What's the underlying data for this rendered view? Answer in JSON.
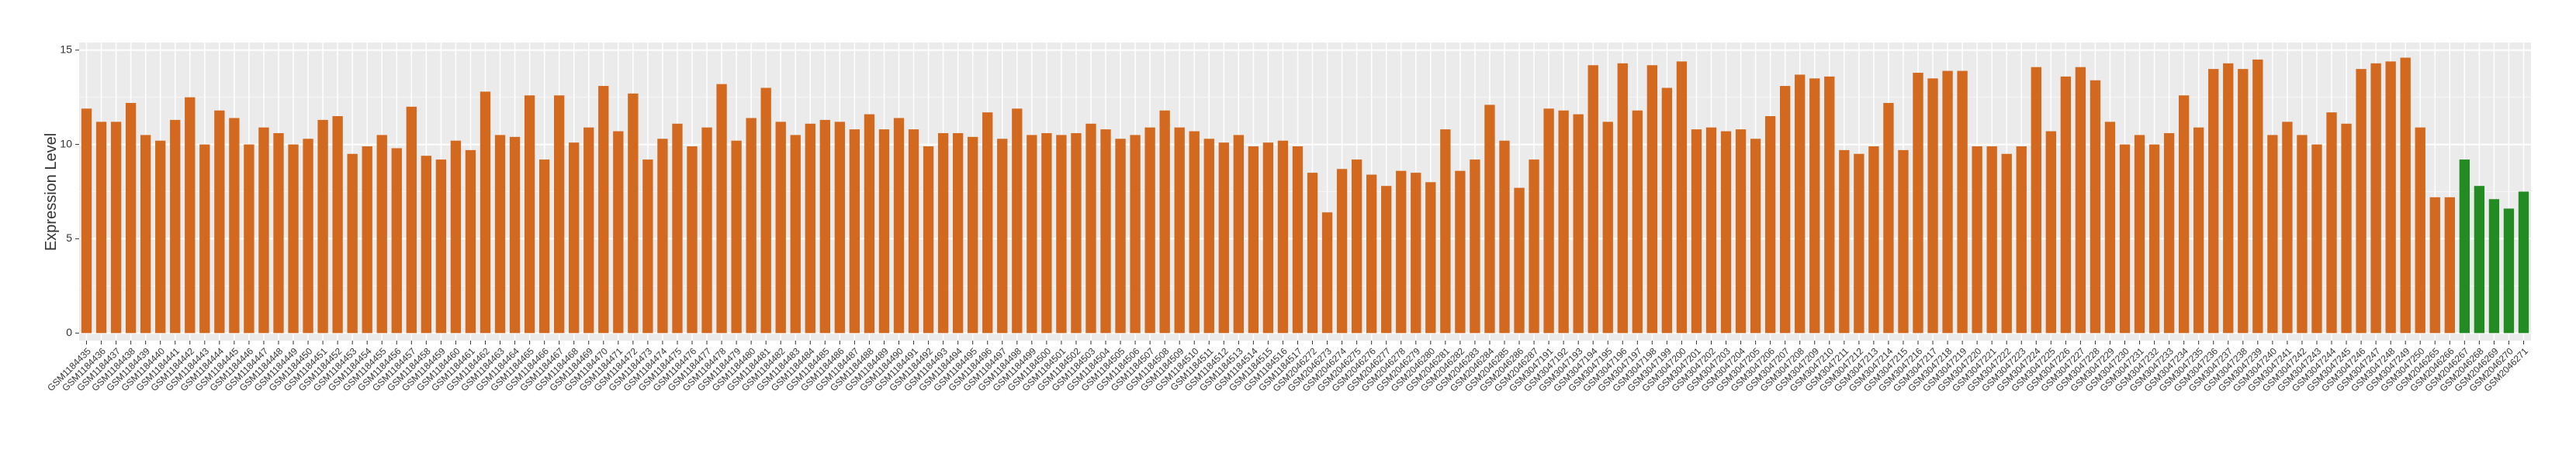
{
  "chart_data": {
    "type": "bar",
    "y_label": "Expression Level",
    "categories": [
      "GSM1184435",
      "GSM1184436",
      "GSM1184437",
      "GSM1184438",
      "GSM1184439",
      "GSM1184440",
      "GSM1184441",
      "GSM1184442",
      "GSM1184443",
      "GSM1184444",
      "GSM1184445",
      "GSM1184446",
      "GSM1184447",
      "GSM1184448",
      "GSM1184449",
      "GSM1184450",
      "GSM1184451",
      "GSM1184452",
      "GSM1184453",
      "GSM1184454",
      "GSM1184455",
      "GSM1184456",
      "GSM1184457",
      "GSM1184458",
      "GSM1184459",
      "GSM1184460",
      "GSM1184461",
      "GSM1184462",
      "GSM1184463",
      "GSM1184464",
      "GSM1184465",
      "GSM1184466",
      "GSM1184467",
      "GSM1184468",
      "GSM1184469",
      "GSM1184470",
      "GSM1184471",
      "GSM1184472",
      "GSM1184473",
      "GSM1184474",
      "GSM1184475",
      "GSM1184476",
      "GSM1184477",
      "GSM1184478",
      "GSM1184479",
      "GSM1184480",
      "GSM1184481",
      "GSM1184482",
      "GSM1184483",
      "GSM1184484",
      "GSM1184485",
      "GSM1184486",
      "GSM1184487",
      "GSM1184488",
      "GSM1184489",
      "GSM1184490",
      "GSM1184491",
      "GSM1184492",
      "GSM1184493",
      "GSM1184494",
      "GSM1184495",
      "GSM1184496",
      "GSM1184497",
      "GSM1184498",
      "GSM1184499",
      "GSM1184500",
      "GSM1184501",
      "GSM1184502",
      "GSM1184503",
      "GSM1184504",
      "GSM1184505",
      "GSM1184506",
      "GSM1184507",
      "GSM1184508",
      "GSM1184509",
      "GSM1184510",
      "GSM1184511",
      "GSM1184512",
      "GSM1184513",
      "GSM1184514",
      "GSM1184515",
      "GSM1184516",
      "GSM1184517",
      "GSM2046272",
      "GSM2046273",
      "GSM2046274",
      "GSM2046275",
      "GSM2046276",
      "GSM2046277",
      "GSM2046278",
      "GSM2046279",
      "GSM2046280",
      "GSM2046281",
      "GSM2046282",
      "GSM2046283",
      "GSM2046284",
      "GSM2046285",
      "GSM2046286",
      "GSM2046287",
      "GSM3047191",
      "GSM3047192",
      "GSM3047193",
      "GSM3047194",
      "GSM3047195",
      "GSM3047196",
      "GSM3047197",
      "GSM3047198",
      "GSM3047199",
      "GSM3047200",
      "GSM3047201",
      "GSM3047202",
      "GSM3047203",
      "GSM3047204",
      "GSM3047205",
      "GSM3047206",
      "GSM3047207",
      "GSM3047208",
      "GSM3047209",
      "GSM3047210",
      "GSM3047211",
      "GSM3047212",
      "GSM3047213",
      "GSM3047214",
      "GSM3047215",
      "GSM3047216",
      "GSM3047217",
      "GSM3047218",
      "GSM3047219",
      "GSM3047220",
      "GSM3047221",
      "GSM3047222",
      "GSM3047223",
      "GSM3047224",
      "GSM3047225",
      "GSM3047226",
      "GSM3047227",
      "GSM3047228",
      "GSM3047229",
      "GSM3047230",
      "GSM3047231",
      "GSM3047232",
      "GSM3047233",
      "GSM3047234",
      "GSM3047235",
      "GSM3047236",
      "GSM3047237",
      "GSM3047238",
      "GSM3047239",
      "GSM3047240",
      "GSM3047241",
      "GSM3047242",
      "GSM3047243",
      "GSM3047244",
      "GSM3047245",
      "GSM3047246",
      "GSM3047247",
      "GSM3047248",
      "GSM3047249",
      "GSM3047250",
      "GSM2046265",
      "GSM2046266",
      "GSM2046267",
      "GSM2046268",
      "GSM2046269",
      "GSM2046270",
      "GSM2046271"
    ],
    "values": [
      11.9,
      11.2,
      11.2,
      12.2,
      10.5,
      10.2,
      11.3,
      12.5,
      10.0,
      11.8,
      11.4,
      10.0,
      10.9,
      10.6,
      10.0,
      10.3,
      11.3,
      11.5,
      9.5,
      9.9,
      10.5,
      9.8,
      12.0,
      9.4,
      9.2,
      10.2,
      9.7,
      12.8,
      10.5,
      10.4,
      12.6,
      9.2,
      12.6,
      10.1,
      10.9,
      13.1,
      10.7,
      12.7,
      9.2,
      10.3,
      11.1,
      9.9,
      10.9,
      13.2,
      10.2,
      11.4,
      13.0,
      11.2,
      10.5,
      11.1,
      11.3,
      11.2,
      10.8,
      11.6,
      10.8,
      11.4,
      10.8,
      9.9,
      10.6,
      10.6,
      10.4,
      11.7,
      10.3,
      11.9,
      10.5,
      10.6,
      10.5,
      10.6,
      11.1,
      10.8,
      10.3,
      10.5,
      10.9,
      11.8,
      10.9,
      10.7,
      10.3,
      10.1,
      10.5,
      9.9,
      10.1,
      10.2,
      9.9,
      8.5,
      6.4,
      8.7,
      9.2,
      8.4,
      7.8,
      8.6,
      8.5,
      8.0,
      10.8,
      8.6,
      9.2,
      12.1,
      10.2,
      7.7,
      9.2,
      11.9,
      11.8,
      11.6,
      14.2,
      11.2,
      14.3,
      11.8,
      14.2,
      13.0,
      14.4,
      10.8,
      10.9,
      10.7,
      10.8,
      10.3,
      11.5,
      13.1,
      13.7,
      13.5,
      13.6,
      9.7,
      9.5,
      9.9,
      12.2,
      9.7,
      13.8,
      13.5,
      13.9,
      13.9,
      9.9,
      9.9,
      9.5,
      9.9,
      14.1,
      10.7,
      13.6,
      14.1,
      13.4,
      11.2,
      10.0,
      10.5,
      10.0,
      10.6,
      12.6,
      10.9,
      14.0,
      14.3,
      14.0,
      14.5,
      10.5,
      11.2,
      10.5,
      10.0,
      11.7,
      11.1,
      14.0,
      14.3,
      14.4,
      14.6,
      10.9,
      7.2,
      7.2,
      9.2,
      7.8,
      7.1,
      6.6,
      7.5
    ],
    "colors": [
      "#d2691e",
      "#d2691e",
      "#d2691e",
      "#d2691e",
      "#d2691e",
      "#d2691e",
      "#d2691e",
      "#d2691e",
      "#d2691e",
      "#d2691e",
      "#d2691e",
      "#d2691e",
      "#d2691e",
      "#d2691e",
      "#d2691e",
      "#d2691e",
      "#d2691e",
      "#d2691e",
      "#d2691e",
      "#d2691e",
      "#d2691e",
      "#d2691e",
      "#d2691e",
      "#d2691e",
      "#d2691e",
      "#d2691e",
      "#d2691e",
      "#d2691e",
      "#d2691e",
      "#d2691e",
      "#d2691e",
      "#d2691e",
      "#d2691e",
      "#d2691e",
      "#d2691e",
      "#d2691e",
      "#d2691e",
      "#d2691e",
      "#d2691e",
      "#d2691e",
      "#d2691e",
      "#d2691e",
      "#d2691e",
      "#d2691e",
      "#d2691e",
      "#d2691e",
      "#d2691e",
      "#d2691e",
      "#d2691e",
      "#d2691e",
      "#d2691e",
      "#d2691e",
      "#d2691e",
      "#d2691e",
      "#d2691e",
      "#d2691e",
      "#d2691e",
      "#d2691e",
      "#d2691e",
      "#d2691e",
      "#d2691e",
      "#d2691e",
      "#d2691e",
      "#d2691e",
      "#d2691e",
      "#d2691e",
      "#d2691e",
      "#d2691e",
      "#d2691e",
      "#d2691e",
      "#d2691e",
      "#d2691e",
      "#d2691e",
      "#d2691e",
      "#d2691e",
      "#d2691e",
      "#d2691e",
      "#d2691e",
      "#d2691e",
      "#d2691e",
      "#d2691e",
      "#d2691e",
      "#d2691e",
      "#d2691e",
      "#d2691e",
      "#d2691e",
      "#d2691e",
      "#d2691e",
      "#d2691e",
      "#d2691e",
      "#d2691e",
      "#d2691e",
      "#d2691e",
      "#d2691e",
      "#d2691e",
      "#d2691e",
      "#d2691e",
      "#d2691e",
      "#d2691e",
      "#d2691e",
      "#d2691e",
      "#d2691e",
      "#d2691e",
      "#d2691e",
      "#d2691e",
      "#d2691e",
      "#d2691e",
      "#d2691e",
      "#d2691e",
      "#d2691e",
      "#d2691e",
      "#d2691e",
      "#d2691e",
      "#d2691e",
      "#d2691e",
      "#d2691e",
      "#d2691e",
      "#d2691e",
      "#d2691e",
      "#d2691e",
      "#d2691e",
      "#d2691e",
      "#d2691e",
      "#d2691e",
      "#d2691e",
      "#d2691e",
      "#d2691e",
      "#d2691e",
      "#d2691e",
      "#d2691e",
      "#d2691e",
      "#d2691e",
      "#d2691e",
      "#d2691e",
      "#d2691e",
      "#d2691e",
      "#d2691e",
      "#d2691e",
      "#d2691e",
      "#d2691e",
      "#d2691e",
      "#d2691e",
      "#d2691e",
      "#d2691e",
      "#d2691e",
      "#d2691e",
      "#d2691e",
      "#d2691e",
      "#d2691e",
      "#d2691e",
      "#d2691e",
      "#d2691e",
      "#d2691e",
      "#d2691e",
      "#d2691e",
      "#d2691e",
      "#d2691e",
      "#d2691e",
      "#d2691e",
      "#d2691e",
      "#d2691e",
      "#228b22",
      "#228b22",
      "#228b22",
      "#228b22",
      "#228b22",
      "#228b22",
      "#228b22"
    ],
    "ylim": [
      -0.4,
      15.4
    ],
    "yticks": [
      0,
      5,
      10,
      15
    ],
    "grid": true
  }
}
